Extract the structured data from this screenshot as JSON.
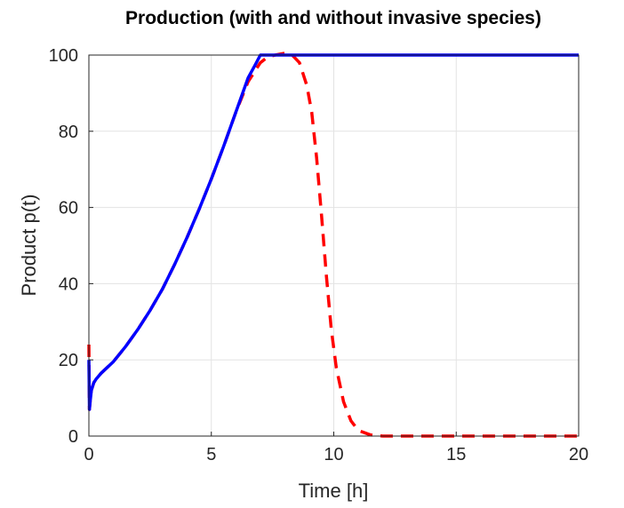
{
  "chart_data": {
    "type": "line",
    "title": "Production (with and without invasive species)",
    "xlabel": "Time [h]",
    "ylabel": "Product p(t)",
    "xlim": [
      0,
      20
    ],
    "ylim": [
      0,
      100
    ],
    "xticks": [
      0,
      5,
      10,
      15,
      20
    ],
    "yticks": [
      0,
      20,
      40,
      60,
      80,
      100
    ],
    "grid": true,
    "legend": "none",
    "series": [
      {
        "style": "solid",
        "color": "#0000ff",
        "x": [
          0,
          0.02,
          0.05,
          0.1,
          0.2,
          0.3,
          0.5,
          1.0,
          1.5,
          2.0,
          2.5,
          3.0,
          3.5,
          4.0,
          4.5,
          5.0,
          5.5,
          6.0,
          6.5,
          6.8,
          7.0,
          8.0,
          10.0,
          12.0,
          15.0,
          20.0
        ],
        "y": [
          20,
          7,
          9,
          12,
          14,
          15,
          16.5,
          19.5,
          23.5,
          28,
          33,
          38.5,
          45,
          52,
          59.5,
          67.5,
          76,
          85,
          94,
          97.5,
          100,
          100,
          100,
          100,
          100,
          100
        ]
      },
      {
        "style": "dashed",
        "color": "#ff0000",
        "x": [
          0,
          0.02,
          0.05,
          0.1,
          0.2,
          0.3,
          0.5,
          1.0,
          1.5,
          2.0,
          2.5,
          3.0,
          3.5,
          4.0,
          4.5,
          5.0,
          5.5,
          6.0,
          6.5,
          7.0,
          7.3,
          7.6,
          8.0,
          8.3,
          8.6,
          8.9,
          9.1,
          9.3,
          9.5,
          9.7,
          9.9,
          10.1,
          10.4,
          10.7,
          11.0,
          11.5,
          12.0,
          15.0,
          20.0
        ],
        "y": [
          24,
          7,
          9,
          12,
          14,
          15,
          16.5,
          19.5,
          23.5,
          28,
          33,
          38.5,
          45,
          52,
          59.5,
          67.5,
          76,
          85,
          93,
          98,
          99.5,
          100,
          100.5,
          100,
          98,
          92,
          85,
          73,
          58,
          42,
          28,
          18,
          9,
          4,
          1.5,
          0.3,
          0,
          0,
          0
        ]
      }
    ]
  }
}
